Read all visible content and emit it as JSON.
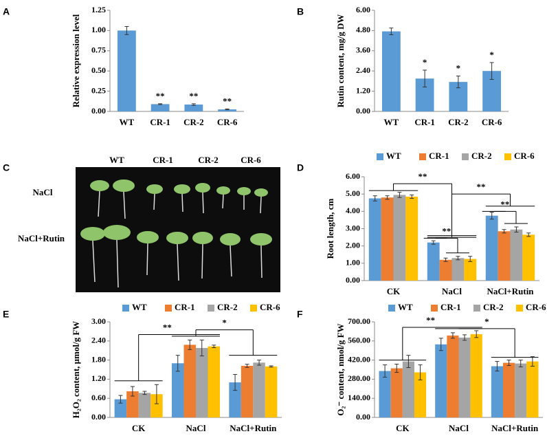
{
  "chart_data": [
    {
      "type": "bar",
      "panel": "A",
      "ylabel": "Relative expression level",
      "categories": [
        "WT",
        "CR-1",
        "CR-2",
        "CR-6"
      ],
      "values": [
        1.0,
        0.09,
        0.085,
        0.025
      ],
      "errors": [
        0.05,
        0.005,
        0.01,
        0.005
      ],
      "color": "#5b9bd5",
      "annotations": [
        null,
        "**",
        "**",
        "**"
      ],
      "ylim": [
        0,
        1.25
      ],
      "yticks": [
        {
          "value": 0,
          "label": "0.00"
        },
        {
          "value": 0.25,
          "label": "0.25"
        },
        {
          "value": 0.5,
          "label": "0.50"
        },
        {
          "value": 0.75,
          "label": "0.75"
        },
        {
          "value": 1,
          "label": "1.00"
        },
        {
          "value": 1.25,
          "label": "1.25"
        }
      ]
    },
    {
      "type": "bar",
      "panel": "B",
      "ylabel": "Rutin content, mg/g DW",
      "categories": [
        "WT",
        "CR-1",
        "CR-2",
        "CR-6"
      ],
      "values": [
        4.75,
        1.95,
        1.75,
        2.4
      ],
      "errors": [
        0.2,
        0.5,
        0.35,
        0.5
      ],
      "color": "#5b9bd5",
      "annotations": [
        null,
        "*",
        "*",
        "*"
      ],
      "ylim": [
        0,
        6
      ],
      "yticks": [
        {
          "value": 0,
          "label": "0.00"
        },
        {
          "value": 1.2,
          "label": "1.20"
        },
        {
          "value": 2.4,
          "label": "2.40"
        },
        {
          "value": 3.6,
          "label": "3.60"
        },
        {
          "value": 4.8,
          "label": "4.80"
        },
        {
          "value": 6,
          "label": "6.00"
        }
      ]
    },
    {
      "type": "grouped-bar",
      "panel": "D",
      "ylabel": "Root length, cm",
      "legend": "top",
      "categories": [
        "CK",
        "NaCl",
        "NaCl+Rutin"
      ],
      "series": [
        {
          "name": "WT",
          "color": "#5b9bd5",
          "values": [
            4.75,
            2.2,
            3.75
          ],
          "errors": [
            0.15,
            0.1,
            0.2
          ]
        },
        {
          "name": "CR-1",
          "color": "#ed7d31",
          "values": [
            4.8,
            1.2,
            2.85
          ],
          "errors": [
            0.1,
            0.1,
            0.1
          ]
        },
        {
          "name": "CR-2",
          "color": "#a5a5a5",
          "values": [
            4.95,
            1.3,
            2.95
          ],
          "errors": [
            0.15,
            0.1,
            0.15
          ]
        },
        {
          "name": "CR-6",
          "color": "#ffc000",
          "values": [
            4.85,
            1.25,
            2.65
          ],
          "errors": [
            0.1,
            0.15,
            0.1
          ]
        }
      ],
      "annotations": [
        "**",
        "**",
        "**",
        "**"
      ],
      "ylim": [
        0,
        6
      ],
      "yticks": [
        {
          "value": 0,
          "label": "0.00"
        },
        {
          "value": 1,
          "label": "1.00"
        },
        {
          "value": 2,
          "label": "2.00"
        },
        {
          "value": 3,
          "label": "3.00"
        },
        {
          "value": 4,
          "label": "4.00"
        },
        {
          "value": 5,
          "label": "5.00"
        },
        {
          "value": 6,
          "label": "6.00"
        }
      ]
    },
    {
      "type": "grouped-bar",
      "panel": "E",
      "ylabel": "H₂O₂ content, μmol/g FW",
      "legend": "top",
      "categories": [
        "CK",
        "NaCl",
        "NaCl+Rutin"
      ],
      "series": [
        {
          "name": "WT",
          "color": "#5b9bd5",
          "values": [
            0.57,
            1.7,
            1.1
          ],
          "errors": [
            0.12,
            0.25,
            0.25
          ]
        },
        {
          "name": "CR-1",
          "color": "#ed7d31",
          "values": [
            0.82,
            2.28,
            1.62
          ],
          "errors": [
            0.15,
            0.15,
            0.05
          ]
        },
        {
          "name": "CR-2",
          "color": "#a5a5a5",
          "values": [
            0.77,
            2.18,
            1.72
          ],
          "errors": [
            0.05,
            0.25,
            0.08
          ]
        },
        {
          "name": "CR-6",
          "color": "#ffc000",
          "values": [
            0.73,
            2.23,
            1.6
          ],
          "errors": [
            0.3,
            0.04,
            0.02
          ]
        }
      ],
      "annotations": [
        "**",
        "*"
      ],
      "ylim": [
        0,
        3
      ],
      "yticks": [
        {
          "value": 0,
          "label": "0.00"
        },
        {
          "value": 0.6,
          "label": "0.60"
        },
        {
          "value": 1.2,
          "label": "1.20"
        },
        {
          "value": 1.8,
          "label": "1.80"
        },
        {
          "value": 2.4,
          "label": "2.40"
        },
        {
          "value": 3,
          "label": "3.00"
        }
      ]
    },
    {
      "type": "grouped-bar",
      "panel": "F",
      "ylabel": "O₂⁻ content, nmol/g FW",
      "legend": "top",
      "categories": [
        "CK",
        "NaCl",
        "NaCl+Rutin"
      ],
      "series": [
        {
          "name": "WT",
          "color": "#5b9bd5",
          "values": [
            340,
            535,
            375
          ],
          "errors": [
            45,
            45,
            35
          ]
        },
        {
          "name": "CR-1",
          "color": "#ed7d31",
          "values": [
            360,
            600,
            400
          ],
          "errors": [
            30,
            20,
            20
          ]
        },
        {
          "name": "CR-2",
          "color": "#a5a5a5",
          "values": [
            410,
            585,
            395
          ],
          "errors": [
            45,
            20,
            25
          ]
        },
        {
          "name": "CR-6",
          "color": "#ffc000",
          "values": [
            330,
            610,
            410
          ],
          "errors": [
            55,
            25,
            35
          ]
        }
      ],
      "annotations": [
        "**",
        "*"
      ],
      "ylim": [
        0,
        700
      ],
      "yticks": [
        {
          "value": 0,
          "label": "0.00"
        },
        {
          "value": 140,
          "label": "140.00"
        },
        {
          "value": 280,
          "label": "280.00"
        },
        {
          "value": 420,
          "label": "420.00"
        },
        {
          "value": 560,
          "label": "560.00"
        },
        {
          "value": 700,
          "label": "700.00"
        }
      ]
    }
  ],
  "photo": {
    "panel": "C",
    "columns": [
      "WT",
      "CR-1",
      "CR-2",
      "CR-6"
    ],
    "rows": [
      "NaCl",
      "NaCl+Rutin"
    ]
  }
}
